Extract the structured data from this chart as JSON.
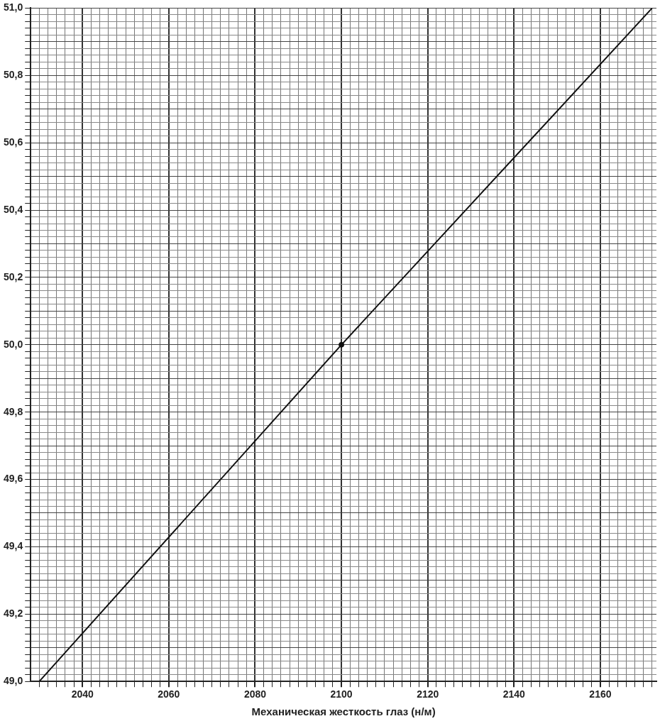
{
  "chart_data": {
    "type": "line",
    "xlabel": "Механическая жесткость глаз (н/м)",
    "series": [
      {
        "color": "#111111",
        "marker": "none",
        "x": [
          2030,
          2100,
          2172
        ],
        "values": [
          49.0,
          50.0,
          51.0
        ]
      },
      {
        "type": "scatter",
        "color": "#111111",
        "marker": "circle",
        "x": [
          2100
        ],
        "values": [
          50.0
        ]
      }
    ],
    "xlim": [
      2028,
      2173
    ],
    "ylim": [
      49.0,
      51.0
    ],
    "xticks": [
      {
        "value": 2030,
        "label": null
      },
      {
        "value": 2032,
        "label": null
      },
      {
        "value": 2034,
        "label": null
      },
      {
        "value": 2036,
        "label": null
      },
      {
        "value": 2038,
        "label": null
      },
      2040,
      {
        "value": 2042,
        "label": null
      },
      {
        "value": 2044,
        "label": null
      },
      {
        "value": 2046,
        "label": null
      },
      {
        "value": 2048,
        "label": null
      },
      {
        "value": 2050,
        "label": null
      },
      {
        "value": 2052,
        "label": null
      },
      {
        "value": 2054,
        "label": null
      },
      {
        "value": 2056,
        "label": null
      },
      {
        "value": 2058,
        "label": null
      },
      2060,
      {
        "value": 2062,
        "label": null
      },
      {
        "value": 2064,
        "label": null
      },
      {
        "value": 2066,
        "label": null
      },
      {
        "value": 2068,
        "label": null
      },
      {
        "value": 2070,
        "label": null
      },
      {
        "value": 2072,
        "label": null
      },
      {
        "value": 2074,
        "label": null
      },
      {
        "value": 2076,
        "label": null
      },
      {
        "value": 2078,
        "label": null
      },
      2080,
      {
        "value": 2082,
        "label": null
      },
      {
        "value": 2084,
        "label": null
      },
      {
        "value": 2086,
        "label": null
      },
      {
        "value": 2088,
        "label": null
      },
      {
        "value": 2090,
        "label": null
      },
      {
        "value": 2092,
        "label": null
      },
      {
        "value": 2094,
        "label": null
      },
      {
        "value": 2096,
        "label": null
      },
      {
        "value": 2098,
        "label": null
      },
      2100,
      {
        "value": 2102,
        "label": null
      },
      {
        "value": 2104,
        "label": null
      },
      {
        "value": 2106,
        "label": null
      },
      {
        "value": 2108,
        "label": null
      },
      {
        "value": 2110,
        "label": null
      },
      {
        "value": 2112,
        "label": null
      },
      {
        "value": 2114,
        "label": null
      },
      {
        "value": 2116,
        "label": null
      },
      {
        "value": 2118,
        "label": null
      },
      2120,
      {
        "value": 2122,
        "label": null
      },
      {
        "value": 2124,
        "label": null
      },
      {
        "value": 2126,
        "label": null
      },
      {
        "value": 2128,
        "label": null
      },
      {
        "value": 2130,
        "label": null
      },
      {
        "value": 2132,
        "label": null
      },
      {
        "value": 2134,
        "label": null
      },
      {
        "value": 2136,
        "label": null
      },
      {
        "value": 2138,
        "label": null
      },
      2140,
      {
        "value": 2142,
        "label": null
      },
      {
        "value": 2144,
        "label": null
      },
      {
        "value": 2146,
        "label": null
      },
      {
        "value": 2148,
        "label": null
      },
      {
        "value": 2150,
        "label": null
      },
      {
        "value": 2152,
        "label": null
      },
      {
        "value": 2154,
        "label": null
      },
      {
        "value": 2156,
        "label": null
      },
      {
        "value": 2158,
        "label": null
      },
      2160,
      {
        "value": 2162,
        "label": null
      },
      {
        "value": 2164,
        "label": null
      },
      {
        "value": 2166,
        "label": null
      },
      {
        "value": 2168,
        "label": null
      },
      {
        "value": 2170,
        "label": null
      },
      {
        "value": 2172,
        "label": null
      }
    ],
    "yticks": [
      {
        "value": 49.0,
        "label": "49,0"
      },
      {
        "value": 49.02,
        "label": null
      },
      {
        "value": 49.04,
        "label": null
      },
      {
        "value": 49.06,
        "label": null
      },
      {
        "value": 49.08,
        "label": null
      },
      {
        "value": 49.1,
        "label": null
      },
      {
        "value": 49.12,
        "label": null
      },
      {
        "value": 49.14,
        "label": null
      },
      {
        "value": 49.16,
        "label": null
      },
      {
        "value": 49.18,
        "label": null
      },
      {
        "value": 49.2,
        "label": "49,2"
      },
      {
        "value": 49.22,
        "label": null
      },
      {
        "value": 49.24,
        "label": null
      },
      {
        "value": 49.26,
        "label": null
      },
      {
        "value": 49.28,
        "label": null
      },
      {
        "value": 49.3,
        "label": null
      },
      {
        "value": 49.32,
        "label": null
      },
      {
        "value": 49.34,
        "label": null
      },
      {
        "value": 49.36,
        "label": null
      },
      {
        "value": 49.38,
        "label": null
      },
      {
        "value": 49.4,
        "label": "49,4"
      },
      {
        "value": 49.42,
        "label": null
      },
      {
        "value": 49.44,
        "label": null
      },
      {
        "value": 49.46,
        "label": null
      },
      {
        "value": 49.48,
        "label": null
      },
      {
        "value": 49.5,
        "label": null
      },
      {
        "value": 49.52,
        "label": null
      },
      {
        "value": 49.54,
        "label": null
      },
      {
        "value": 49.56,
        "label": null
      },
      {
        "value": 49.58,
        "label": null
      },
      {
        "value": 49.6,
        "label": "49,6"
      },
      {
        "value": 49.62,
        "label": null
      },
      {
        "value": 49.64,
        "label": null
      },
      {
        "value": 49.66,
        "label": null
      },
      {
        "value": 49.68,
        "label": null
      },
      {
        "value": 49.7,
        "label": null
      },
      {
        "value": 49.72,
        "label": null
      },
      {
        "value": 49.74,
        "label": null
      },
      {
        "value": 49.76,
        "label": null
      },
      {
        "value": 49.78,
        "label": null
      },
      {
        "value": 49.8,
        "label": "49,8"
      },
      {
        "value": 49.82,
        "label": null
      },
      {
        "value": 49.84,
        "label": null
      },
      {
        "value": 49.86,
        "label": null
      },
      {
        "value": 49.88,
        "label": null
      },
      {
        "value": 49.9,
        "label": null
      },
      {
        "value": 49.92,
        "label": null
      },
      {
        "value": 49.94,
        "label": null
      },
      {
        "value": 49.96,
        "label": null
      },
      {
        "value": 49.98,
        "label": null
      },
      {
        "value": 50.0,
        "label": "50,0"
      },
      {
        "value": 50.02,
        "label": null
      },
      {
        "value": 50.04,
        "label": null
      },
      {
        "value": 50.06,
        "label": null
      },
      {
        "value": 50.08,
        "label": null
      },
      {
        "value": 50.1,
        "label": null
      },
      {
        "value": 50.12,
        "label": null
      },
      {
        "value": 50.14,
        "label": null
      },
      {
        "value": 50.16,
        "label": null
      },
      {
        "value": 50.18,
        "label": null
      },
      {
        "value": 50.2,
        "label": "50,2"
      },
      {
        "value": 50.22,
        "label": null
      },
      {
        "value": 50.24,
        "label": null
      },
      {
        "value": 50.26,
        "label": null
      },
      {
        "value": 50.28,
        "label": null
      },
      {
        "value": 50.3,
        "label": null
      },
      {
        "value": 50.32,
        "label": null
      },
      {
        "value": 50.34,
        "label": null
      },
      {
        "value": 50.36,
        "label": null
      },
      {
        "value": 50.38,
        "label": null
      },
      {
        "value": 50.4,
        "label": "50,4"
      },
      {
        "value": 50.42,
        "label": null
      },
      {
        "value": 50.44,
        "label": null
      },
      {
        "value": 50.46,
        "label": null
      },
      {
        "value": 50.48,
        "label": null
      },
      {
        "value": 50.5,
        "label": null
      },
      {
        "value": 50.52,
        "label": null
      },
      {
        "value": 50.54,
        "label": null
      },
      {
        "value": 50.56,
        "label": null
      },
      {
        "value": 50.58,
        "label": null
      },
      {
        "value": 50.6,
        "label": "50,6"
      },
      {
        "value": 50.62,
        "label": null
      },
      {
        "value": 50.64,
        "label": null
      },
      {
        "value": 50.66,
        "label": null
      },
      {
        "value": 50.68,
        "label": null
      },
      {
        "value": 50.7,
        "label": null
      },
      {
        "value": 50.72,
        "label": null
      },
      {
        "value": 50.74,
        "label": null
      },
      {
        "value": 50.76,
        "label": null
      },
      {
        "value": 50.78,
        "label": null
      },
      {
        "value": 50.8,
        "label": "50,8"
      },
      {
        "value": 50.82,
        "label": null
      },
      {
        "value": 50.84,
        "label": null
      },
      {
        "value": 50.86,
        "label": null
      },
      {
        "value": 50.88,
        "label": null
      },
      {
        "value": 50.9,
        "label": null
      },
      {
        "value": 50.92,
        "label": null
      },
      {
        "value": 50.94,
        "label": null
      },
      {
        "value": 50.96,
        "label": null
      },
      {
        "value": 50.98,
        "label": null
      },
      {
        "value": 51.0,
        "label": "51,0"
      }
    ],
    "grid": true,
    "legend": false
  }
}
